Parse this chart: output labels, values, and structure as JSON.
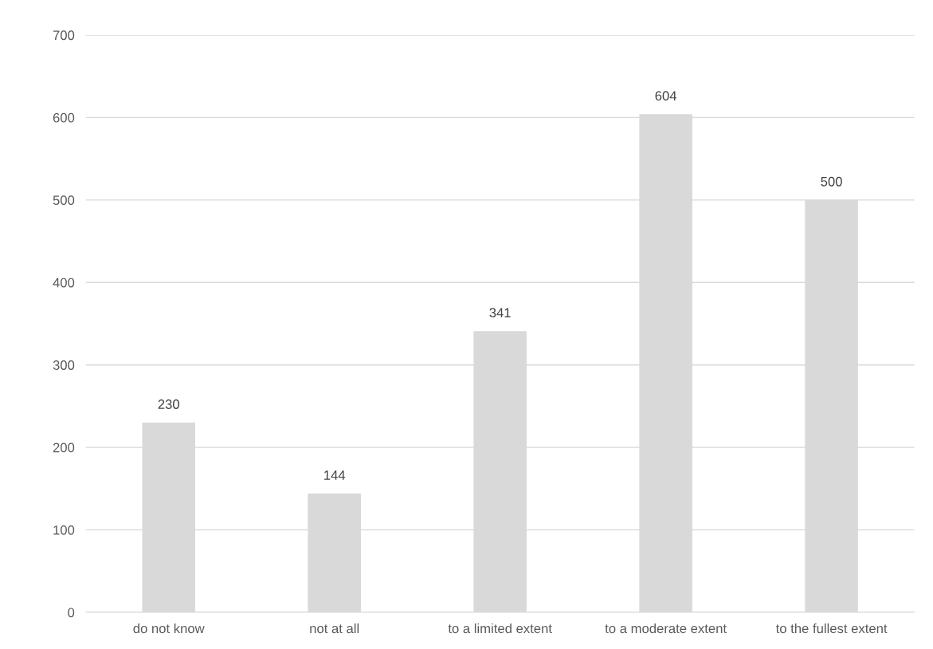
{
  "chart_data": {
    "type": "bar",
    "categories": [
      "do not know",
      "not at all",
      "to a limited extent",
      "to a moderate extent",
      "to the fullest extent"
    ],
    "values": [
      230,
      144,
      341,
      604,
      500
    ],
    "color": "#d9d9d9",
    "ylim": [
      0,
      700
    ],
    "yticks": [
      0,
      100,
      200,
      300,
      400,
      500,
      600,
      700
    ],
    "grid": "y",
    "data_labels": true
  }
}
